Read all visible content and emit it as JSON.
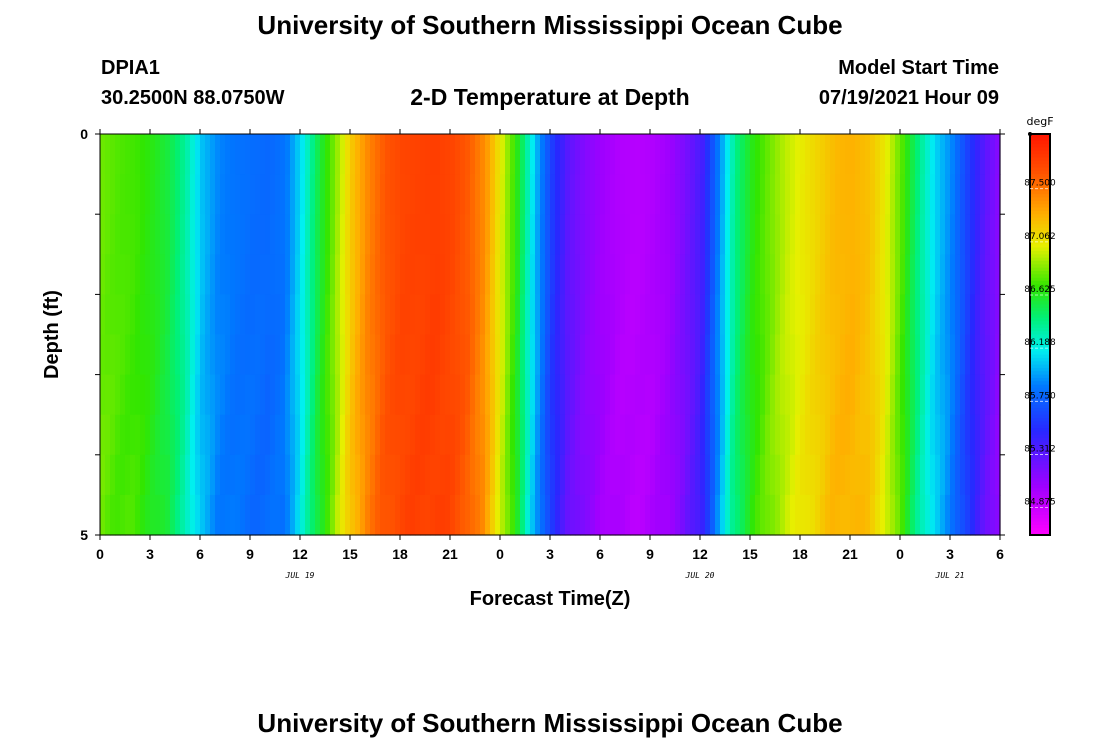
{
  "header": {
    "title": "University of Southern Mississippi Ocean Cube",
    "station_id": "DPIA1",
    "station_coords": "30.2500N  88.0750W",
    "plot_title": "2-D Temperature at Depth",
    "start_time_label": "Model Start Time",
    "start_time_value": "07/19/2021 Hour 09"
  },
  "footer": {
    "title": "University of Southern Mississippi Ocean Cube"
  },
  "chart_data": {
    "type": "heatmap",
    "title": "2-D Temperature at Depth",
    "xlabel": "Forecast Time(Z)",
    "ylabel": "Depth (ft)",
    "x_tick_labels": [
      "0",
      "3",
      "6",
      "9",
      "12",
      "15",
      "18",
      "21",
      "0",
      "3",
      "6",
      "9",
      "12",
      "15",
      "18",
      "21",
      "0",
      "3",
      "6"
    ],
    "date_labels": [
      "JUL 19",
      "JUL 20",
      "JUL 21"
    ],
    "y_tick_labels": [
      "0",
      "5"
    ],
    "ylim": [
      0,
      5
    ],
    "y_inverted": true,
    "x_hours": [
      0,
      1,
      2,
      3,
      4,
      5,
      6,
      7,
      8,
      9,
      10,
      11,
      12,
      13,
      14,
      15,
      16,
      17,
      18,
      19,
      20,
      21,
      22,
      23,
      24,
      25,
      26,
      27,
      28,
      29,
      30,
      31,
      32,
      33,
      34,
      35,
      36,
      37,
      38,
      39,
      40,
      41,
      42,
      43,
      44,
      45,
      46,
      47,
      48,
      49,
      50,
      51,
      52,
      53,
      54
    ],
    "surface_values": [
      86.8,
      86.75,
      86.72,
      86.65,
      86.55,
      86.35,
      86.05,
      85.9,
      85.85,
      85.82,
      85.8,
      85.85,
      86.15,
      86.55,
      86.85,
      87.2,
      87.45,
      87.62,
      87.7,
      87.72,
      87.74,
      87.7,
      87.6,
      87.4,
      87.0,
      86.6,
      86.05,
      85.6,
      85.3,
      85.15,
      85.05,
      84.98,
      84.95,
      84.98,
      85.05,
      85.2,
      85.4,
      85.9,
      86.4,
      86.65,
      86.8,
      86.95,
      87.05,
      87.15,
      87.25,
      87.28,
      87.22,
      87.05,
      86.75,
      86.4,
      86.1,
      85.9,
      85.6,
      85.3,
      85.1
    ],
    "colorbar": {
      "unit": "degF",
      "min": 84.65,
      "max": 87.95,
      "tick_values": [
        84.875,
        85.312,
        85.75,
        86.188,
        86.625,
        87.062,
        87.5
      ],
      "tick_labels": [
        "84.875",
        "85.312",
        "85.750",
        "86.188",
        "86.625",
        "87.062",
        "87.500"
      ]
    }
  }
}
